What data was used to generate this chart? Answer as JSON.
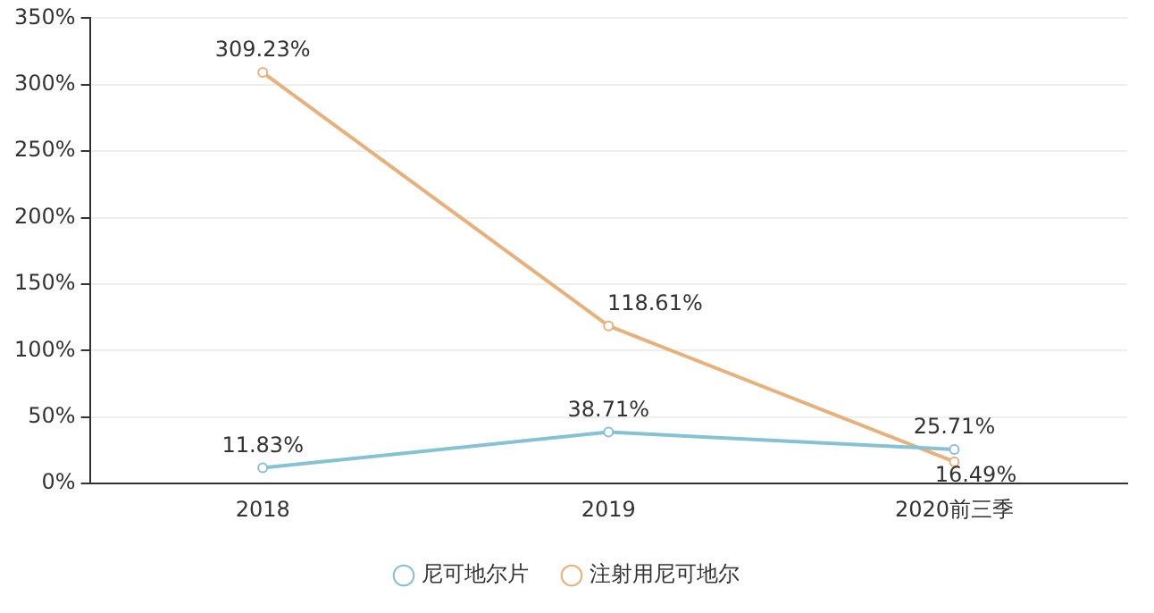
{
  "chart_data": {
    "type": "line",
    "categories": [
      "2018",
      "2019",
      "2020前三季"
    ],
    "series": [
      {
        "name": "尼可地尔片",
        "color": "#86c1d4",
        "values": [
          11.83,
          38.71,
          25.71
        ],
        "value_labels": [
          "11.83%",
          "38.71%",
          "25.71%"
        ]
      },
      {
        "name": "注射用尼可地尔",
        "color": "#e8b07a",
        "values": [
          309.23,
          118.61,
          16.49
        ],
        "value_labels": [
          "309.23%",
          "118.61%",
          "16.49%"
        ]
      }
    ],
    "ylim": [
      0,
      350
    ],
    "yticks": [
      {
        "value": 0,
        "label": "0%"
      },
      {
        "value": 50,
        "label": "50%"
      },
      {
        "value": 100,
        "label": "100%"
      },
      {
        "value": 150,
        "label": "150%"
      },
      {
        "value": 200,
        "label": "200%"
      },
      {
        "value": 250,
        "label": "250%"
      },
      {
        "value": 300,
        "label": "300%"
      },
      {
        "value": 350,
        "label": "350%"
      }
    ],
    "grid": "y",
    "legend": "bottom",
    "marker": "circle",
    "line_style": "solid"
  }
}
